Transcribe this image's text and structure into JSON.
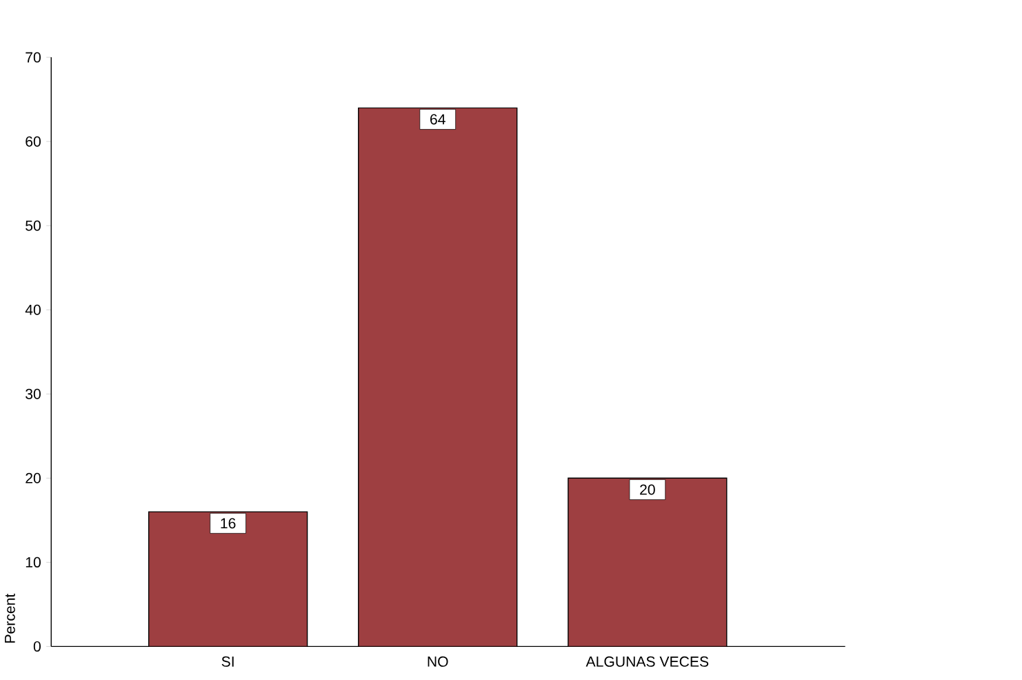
{
  "chart_data": {
    "type": "bar",
    "ylabel": "Percent",
    "categories": [
      "SI",
      "NO",
      "ALGUNAS VECES"
    ],
    "values": [
      16,
      64,
      20
    ],
    "color": "#9e3f41",
    "ylim": [
      0,
      70
    ],
    "yticks": [
      0,
      10,
      20,
      30,
      40,
      50,
      60,
      70
    ],
    "data_labels": true,
    "grid": false
  }
}
